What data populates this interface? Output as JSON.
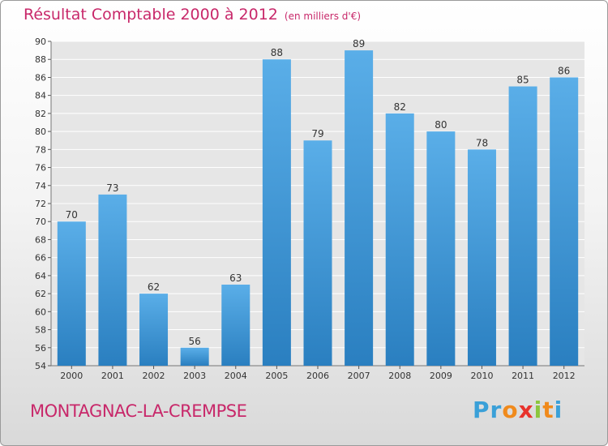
{
  "header": {
    "title": "Résultat Comptable 2000 à 2012",
    "unit": "(en milliers d'€)"
  },
  "footer": {
    "commune": "MONTAGNAC-LA-CREMPSE"
  },
  "logo": {
    "letters": [
      "P",
      "r",
      "o",
      "x",
      "i",
      "t",
      "i"
    ],
    "colors": [
      "#3aa0d8",
      "#3aa0d8",
      "#f08a1c",
      "#e8322c",
      "#8cc63e",
      "#f08a1c",
      "#3aa0d8"
    ]
  },
  "colors": {
    "title": "#c8286a",
    "bar_top": "#5aaee8",
    "bar_bottom": "#2a7fc0",
    "plot_bg": "#e6e6e6",
    "gridline": "#ffffff"
  },
  "chart_data": {
    "type": "bar",
    "title": "Résultat Comptable 2000 à 2012",
    "subtitle": "(en milliers d'€)",
    "xlabel": "",
    "ylabel": "",
    "categories": [
      "2000",
      "2001",
      "2002",
      "2003",
      "2004",
      "2005",
      "2006",
      "2007",
      "2008",
      "2009",
      "2010",
      "2011",
      "2012"
    ],
    "values": [
      70,
      73,
      62,
      56,
      63,
      88,
      79,
      89,
      82,
      80,
      78,
      85,
      86
    ],
    "ylim": [
      54,
      90
    ],
    "yticks": [
      54,
      56,
      58,
      60,
      62,
      64,
      66,
      68,
      70,
      72,
      74,
      76,
      78,
      80,
      82,
      84,
      86,
      88,
      90
    ],
    "grid": true
  }
}
